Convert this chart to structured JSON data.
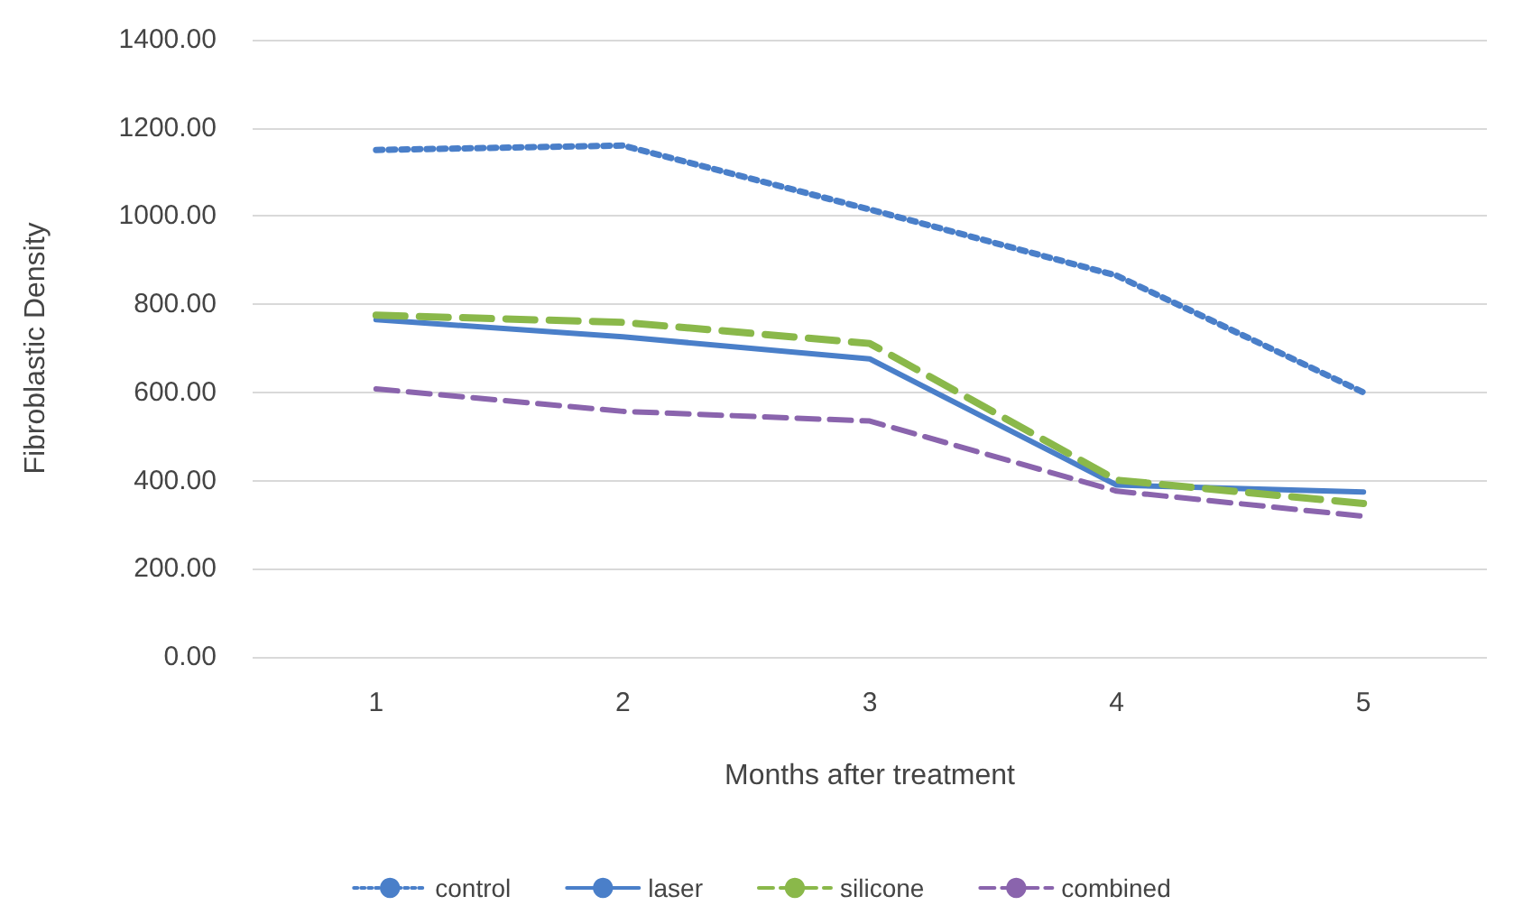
{
  "chart_data": {
    "type": "line",
    "xlabel": "Months after treatment",
    "ylabel": "Fibroblastic Density",
    "categories": [
      "1",
      "2",
      "3",
      "4",
      "5"
    ],
    "series": [
      {
        "name": "control",
        "color": "#4a7fc9",
        "line_style": "dotted",
        "values": [
          1150,
          1160,
          1015,
          865,
          600
        ]
      },
      {
        "name": "laser",
        "color": "#4a7fc9",
        "line_style": "solid",
        "values": [
          765,
          726,
          676,
          390,
          374
        ]
      },
      {
        "name": "silicone",
        "color": "#8ab84a",
        "line_style": "dashed",
        "values": [
          775,
          759,
          711,
          401,
          348
        ]
      },
      {
        "name": "combined",
        "color": "#8a64ad",
        "line_style": "dashed",
        "values": [
          608,
          557,
          535,
          376,
          319
        ]
      }
    ],
    "ylim": [
      0,
      1400
    ],
    "yticks": [
      {
        "value": 0,
        "label": "0.00"
      },
      {
        "value": 200,
        "label": "200.00"
      },
      {
        "value": 400,
        "label": "400.00"
      },
      {
        "value": 600,
        "label": "600.00"
      },
      {
        "value": 800,
        "label": "800.00"
      },
      {
        "value": 1000,
        "label": "1000.00"
      },
      {
        "value": 1200,
        "label": "1200.00"
      },
      {
        "value": 1400,
        "label": "1400.00"
      }
    ],
    "grid": "y",
    "legend": "bottom",
    "marker": "none"
  }
}
